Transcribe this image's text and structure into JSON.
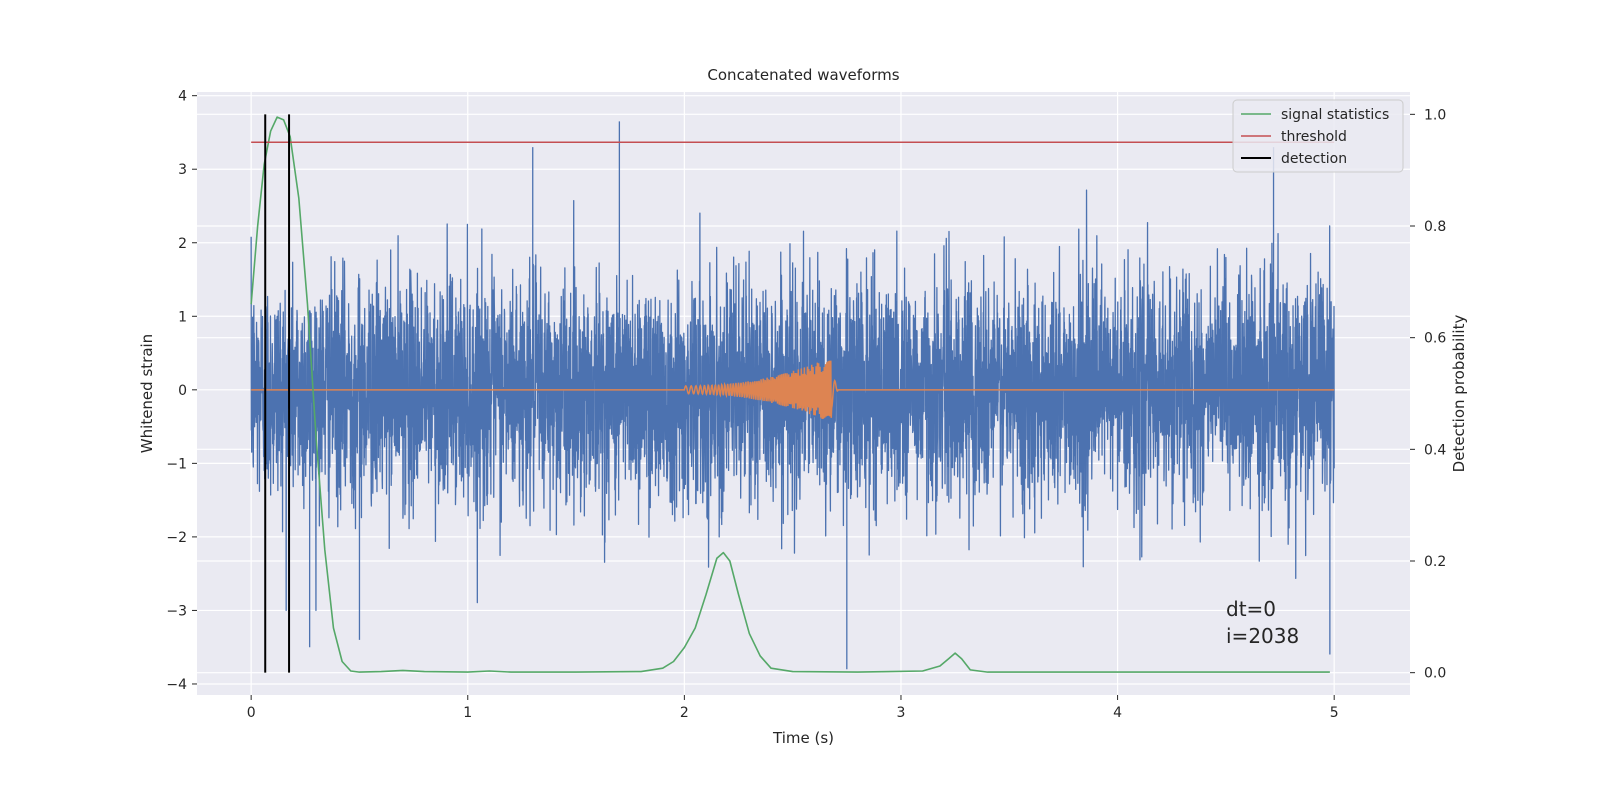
{
  "chart_data": {
    "type": "line",
    "title": "Concatenated waveforms",
    "xlabel": "Time (s)",
    "ylabel": "Whitened strain",
    "y2label": "Detection probability",
    "xlim": [
      -0.25,
      5.35
    ],
    "ylim": [
      -4.15,
      4.05
    ],
    "y2lim": [
      -0.04,
      1.04
    ],
    "xticks": [
      0,
      1,
      2,
      3,
      4,
      5
    ],
    "yticks": [
      -4,
      -3,
      -2,
      -1,
      0,
      1,
      2,
      3,
      4
    ],
    "y2ticks": [
      0.0,
      0.2,
      0.4,
      0.6,
      0.8,
      1.0
    ],
    "y2tick_labels": [
      "0.0",
      "0.2",
      "0.4",
      "0.6",
      "0.8",
      "1.0"
    ],
    "grid": true,
    "legend_position": "top-right",
    "legend": [
      {
        "name": "signal statistics",
        "color": "#55a868"
      },
      {
        "name": "threshold",
        "color": "#c44e52"
      },
      {
        "name": "detection",
        "color": "#000000"
      }
    ],
    "series": [
      {
        "name": "whitened strain",
        "axis": "left",
        "color": "#4c72b0",
        "x_range": [
          0,
          5
        ],
        "noise_sigma": 0.75,
        "spikes": [
          [
            1.3,
            3.3
          ],
          [
            1.7,
            3.65
          ],
          [
            2.75,
            -3.8
          ],
          [
            4.98,
            -3.6
          ],
          [
            0.27,
            -3.5
          ],
          [
            4.72,
            3.3
          ],
          [
            0.5,
            -3.4
          ]
        ]
      },
      {
        "name": "injected waveform",
        "axis": "left",
        "color": "#dd8452",
        "x_range": [
          0,
          5
        ],
        "chirp_start": 2.0,
        "chirp_end": 2.68,
        "peak_amplitude": 0.45
      },
      {
        "name": "signal statistics",
        "axis": "right",
        "color": "#55a868",
        "x": [
          0.0,
          0.03,
          0.06,
          0.09,
          0.12,
          0.15,
          0.18,
          0.22,
          0.26,
          0.3,
          0.34,
          0.38,
          0.42,
          0.46,
          0.5,
          0.6,
          0.7,
          0.8,
          1.0,
          1.1,
          1.2,
          1.5,
          1.8,
          1.9,
          1.95,
          2.0,
          2.05,
          2.1,
          2.15,
          2.18,
          2.21,
          2.25,
          2.3,
          2.35,
          2.4,
          2.5,
          2.8,
          3.1,
          3.18,
          3.22,
          3.25,
          3.28,
          3.32,
          3.4,
          3.6,
          4.0,
          4.5,
          4.98
        ],
        "y": [
          0.66,
          0.8,
          0.91,
          0.97,
          0.995,
          0.99,
          0.96,
          0.85,
          0.66,
          0.42,
          0.22,
          0.08,
          0.02,
          0.003,
          0.001,
          0.002,
          0.004,
          0.002,
          0.001,
          0.003,
          0.001,
          0.001,
          0.002,
          0.008,
          0.02,
          0.045,
          0.08,
          0.14,
          0.205,
          0.215,
          0.2,
          0.14,
          0.07,
          0.03,
          0.008,
          0.002,
          0.001,
          0.003,
          0.012,
          0.025,
          0.035,
          0.025,
          0.005,
          0.001,
          0.001,
          0.001,
          0.001,
          0.001
        ]
      },
      {
        "name": "threshold",
        "axis": "right",
        "color": "#c44e52",
        "x": [
          0,
          5
        ],
        "y": [
          0.95,
          0.95
        ]
      },
      {
        "name": "detection",
        "axis": "right",
        "color": "#000000",
        "x": [
          0.065,
          0.175
        ],
        "y_range": [
          0.0,
          1.0
        ]
      }
    ],
    "annotations": [
      "dt=0",
      "i=2038"
    ]
  }
}
